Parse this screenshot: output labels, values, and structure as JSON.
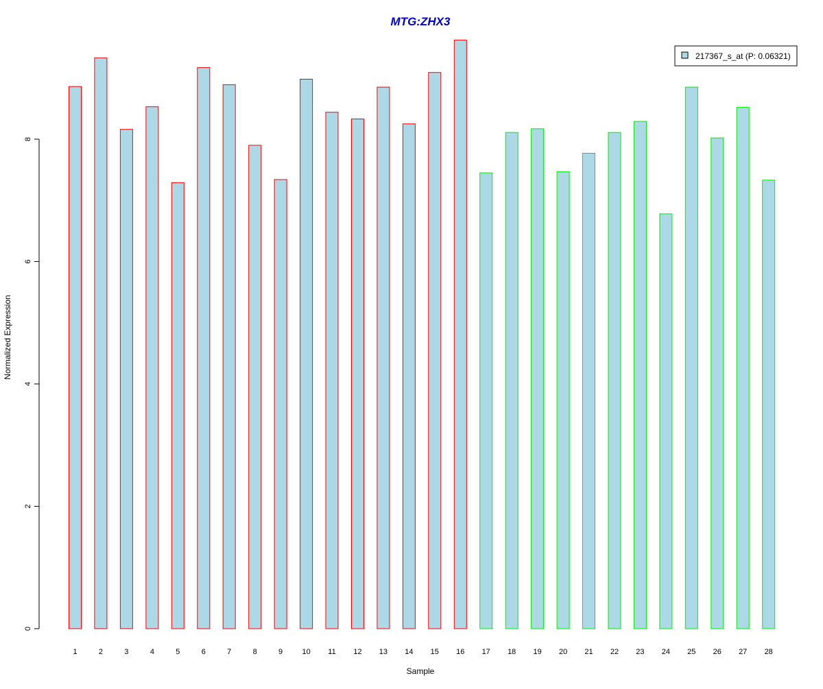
{
  "chart_data": {
    "type": "bar",
    "title": "MTG:ZHX3",
    "xlabel": "Sample",
    "ylabel": "Normalized Expression",
    "ylim": [
      0,
      9.6
    ],
    "yticks": [
      0,
      2,
      4,
      6,
      8
    ],
    "categories": [
      "1",
      "2",
      "3",
      "4",
      "5",
      "6",
      "7",
      "8",
      "9",
      "10",
      "11",
      "12",
      "13",
      "14",
      "15",
      "16",
      "17",
      "18",
      "19",
      "20",
      "21",
      "22",
      "23",
      "24",
      "25",
      "26",
      "27",
      "28"
    ],
    "series": [
      {
        "name": "217367_s_at (P: 0.06321)",
        "values": [
          8.86,
          9.33,
          8.16,
          8.53,
          7.29,
          9.17,
          8.89,
          7.9,
          7.34,
          8.98,
          8.44,
          8.33,
          8.85,
          8.25,
          9.09,
          9.62,
          7.45,
          8.11,
          8.17,
          7.47,
          7.77,
          8.11,
          8.29,
          6.78,
          8.85,
          8.02,
          8.52,
          7.33
        ]
      }
    ],
    "groups": [
      {
        "samples": [
          1,
          16
        ],
        "edge_color": "#ff0000"
      },
      {
        "samples": [
          17,
          28
        ],
        "edge_color": "#00ee00"
      }
    ],
    "colors": {
      "bar_fill": "#add8e6",
      "title": "#0000cd",
      "axis": "#000000"
    },
    "legend": {
      "position": "top-right",
      "entries": [
        "217367_s_at (P: 0.06321)"
      ]
    },
    "grid": false
  }
}
